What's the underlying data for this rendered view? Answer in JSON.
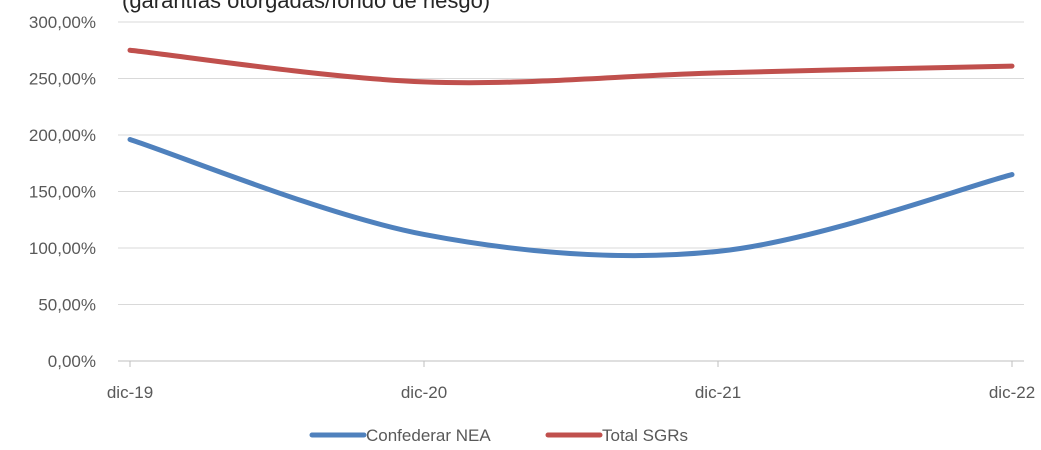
{
  "chart_data": {
    "type": "line",
    "title_fragment": "(garantías otorgadas/fondo de riesgo)",
    "categories": [
      "dic-19",
      "dic-20",
      "dic-21",
      "dic-22"
    ],
    "ylim": [
      0,
      300
    ],
    "yticks": [
      "0,00%",
      "50,00%",
      "100,00%",
      "150,00%",
      "200,00%",
      "250,00%",
      "300,00%"
    ],
    "series": [
      {
        "name": "Confederar NEA",
        "color": "#4F81BD",
        "values": [
          196,
          112,
          97,
          165
        ]
      },
      {
        "name": "Total SGRs",
        "color": "#C0504D",
        "values": [
          275,
          247,
          255,
          261
        ]
      }
    ],
    "grid": true,
    "legend": "bottom"
  }
}
